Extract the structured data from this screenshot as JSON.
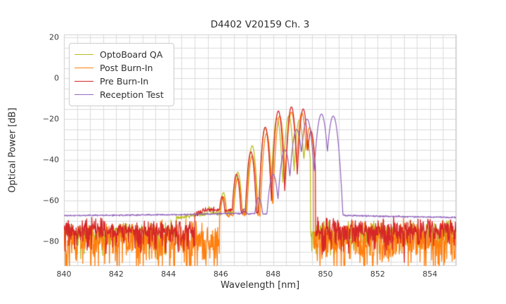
{
  "window": {
    "title": "D4402 V20159 Ch. 3"
  },
  "chart_data": {
    "type": "line",
    "title": "D4402 V20159 Ch. 3",
    "xlabel": "Wavelength [nm]",
    "ylabel": "Optical Power [dB]",
    "xlim": [
      840,
      855
    ],
    "ylim": [
      -92,
      21.5
    ],
    "xticks": [
      840,
      842,
      844,
      846,
      848,
      850,
      852,
      854
    ],
    "yticks": [
      20,
      0,
      -20,
      -40,
      -60,
      -80
    ],
    "grid": {
      "on": true,
      "x_step": 0.5,
      "y_step": 5,
      "color": "#dcdcdc",
      "spine_color": "#cfcfcf"
    },
    "legend": {
      "position": "upper-left",
      "entries": [
        "OptoBoard QA",
        "Post Burn-In",
        "Pre Burn-In",
        "Reception Test"
      ]
    },
    "series": [
      {
        "name": "OptoBoard QA",
        "color": "#bcbd22",
        "line_width": 1.3,
        "seed": 11,
        "signal_range": [
          844.3,
          849.42
        ],
        "base_points": [
          [
            844.3,
            -68.5
          ],
          [
            845.1,
            -66.8
          ],
          [
            846.0,
            -66.0
          ],
          [
            847.0,
            -66.0
          ],
          [
            849.4,
            -66.5
          ]
        ],
        "smooth_jitter": 0.5,
        "mode_width_nm": 0.2,
        "mode_falloff_db": 26,
        "peaks": [
          [
            845.0,
            -67
          ],
          [
            845.55,
            -63
          ],
          [
            846.1,
            -56
          ],
          [
            846.65,
            -46
          ],
          [
            847.2,
            -33
          ],
          [
            847.7,
            -24
          ],
          [
            848.15,
            -19.5
          ],
          [
            848.6,
            -18.5
          ],
          [
            849.0,
            -20.5
          ],
          [
            849.3,
            -30
          ]
        ],
        "noise_left": {
          "range": [
            840,
            844.3
          ],
          "floor": -75.5,
          "sigma": 2.2,
          "spike_depth": 9,
          "spike_prob": 0.25
        },
        "noise_right": {
          "range": [
            849.42,
            855
          ],
          "floor": -75.5,
          "sigma": 2.4,
          "spike_depth": 10,
          "spike_prob": 0.25
        }
      },
      {
        "name": "Post Burn-In",
        "color": "#ff7f0e",
        "line_width": 1.3,
        "seed": 22,
        "signal_range": [
          845.95,
          849.55
        ],
        "base_points": [
          [
            845.95,
            -67.5
          ],
          [
            846.5,
            -66.5
          ],
          [
            849.5,
            -67.0
          ]
        ],
        "smooth_jitter": 0.5,
        "mode_width_nm": 0.2,
        "mode_falloff_db": 26,
        "peaks": [
          [
            846.1,
            -58
          ],
          [
            846.65,
            -49
          ],
          [
            847.2,
            -38
          ],
          [
            847.75,
            -27
          ],
          [
            848.25,
            -18.5
          ],
          [
            848.7,
            -16.5
          ],
          [
            849.1,
            -17
          ],
          [
            849.4,
            -24
          ]
        ],
        "noise_left": {
          "range": [
            840,
            845.95
          ],
          "floor": -78,
          "sigma": 3.5,
          "spike_depth": 16,
          "spike_prob": 0.33
        },
        "noise_right": {
          "range": [
            849.55,
            855
          ],
          "floor": -78,
          "sigma": 3.5,
          "spike_depth": 15,
          "spike_prob": 0.33
        }
      },
      {
        "name": "Pre Burn-In",
        "color": "#d62728",
        "line_width": 1.3,
        "seed": 33,
        "signal_range": [
          845.0,
          849.62
        ],
        "base_points": [
          [
            845.0,
            -66.5
          ],
          [
            845.4,
            -64.8
          ],
          [
            846.0,
            -64.5
          ],
          [
            847.0,
            -65.5
          ],
          [
            849.6,
            -66.0
          ]
        ],
        "smooth_jitter": 0.6,
        "mode_width_nm": 0.2,
        "mode_falloff_db": 26,
        "peaks": [
          [
            845.5,
            -64
          ],
          [
            846.05,
            -58
          ],
          [
            846.6,
            -47
          ],
          [
            847.15,
            -36
          ],
          [
            847.7,
            -24
          ],
          [
            848.2,
            -16
          ],
          [
            848.7,
            -14
          ],
          [
            849.15,
            -15
          ],
          [
            849.45,
            -26
          ]
        ],
        "noise_left": {
          "range": [
            840,
            845.0
          ],
          "floor": -74,
          "sigma": 2.2,
          "spike_depth": 10,
          "spike_prob": 0.28
        },
        "noise_right": {
          "range": [
            849.62,
            855
          ],
          "floor": -74,
          "sigma": 2.6,
          "spike_depth": 11,
          "spike_prob": 0.32
        }
      },
      {
        "name": "Reception Test",
        "color": "#9467bd",
        "line_width": 1.25,
        "seed": 44,
        "signal_range": [
          840,
          855
        ],
        "base_points": [
          [
            840,
            -67.3
          ],
          [
            844.5,
            -66.8
          ],
          [
            846.5,
            -66.2
          ],
          [
            850.45,
            -67.2
          ],
          [
            852.5,
            -67.7
          ],
          [
            855,
            -68.2
          ]
        ],
        "smooth_jitter": 0.18,
        "mode_width_nm": 0.26,
        "mode_falloff_db": 24,
        "peaks": [
          [
            846.9,
            -64
          ],
          [
            847.45,
            -58.5
          ],
          [
            848.0,
            -47
          ],
          [
            848.45,
            -35
          ],
          [
            848.9,
            -25
          ],
          [
            849.3,
            -20
          ],
          [
            849.85,
            -17.5
          ],
          [
            850.3,
            -18.5
          ]
        ],
        "noise_left": null,
        "noise_right": null
      }
    ]
  },
  "legend": {
    "items": [
      {
        "label": "OptoBoard QA",
        "color": "#bcbd22"
      },
      {
        "label": "Post Burn-In",
        "color": "#ff7f0e"
      },
      {
        "label": "Pre Burn-In",
        "color": "#d62728"
      },
      {
        "label": "Reception Test",
        "color": "#9467bd"
      }
    ]
  }
}
